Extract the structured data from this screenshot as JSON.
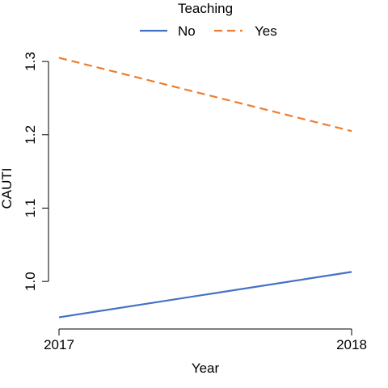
{
  "chart_data": {
    "type": "line",
    "title": "",
    "xlabel": "Year",
    "ylabel": "CAUTI",
    "x": [
      2017,
      2018
    ],
    "x_tick_labels": [
      "2017",
      "2018"
    ],
    "y_ticks": [
      1.0,
      1.1,
      1.2,
      1.3
    ],
    "y_tick_labels": [
      "1.0",
      "1.1",
      "1.2",
      "1.3"
    ],
    "xlim": [
      2017,
      2018
    ],
    "ylim": [
      0.95,
      1.305
    ],
    "grid": false,
    "legend": {
      "title": "Teaching",
      "placement": "top-center",
      "orientation": "horizontal"
    },
    "series": [
      {
        "name": "No",
        "values": [
          0.951,
          1.013
        ],
        "color": "#4472c4",
        "dash": "solid"
      },
      {
        "name": "Yes",
        "values": [
          1.305,
          1.205
        ],
        "color": "#ed7d31",
        "dash": "dashed"
      }
    ]
  }
}
